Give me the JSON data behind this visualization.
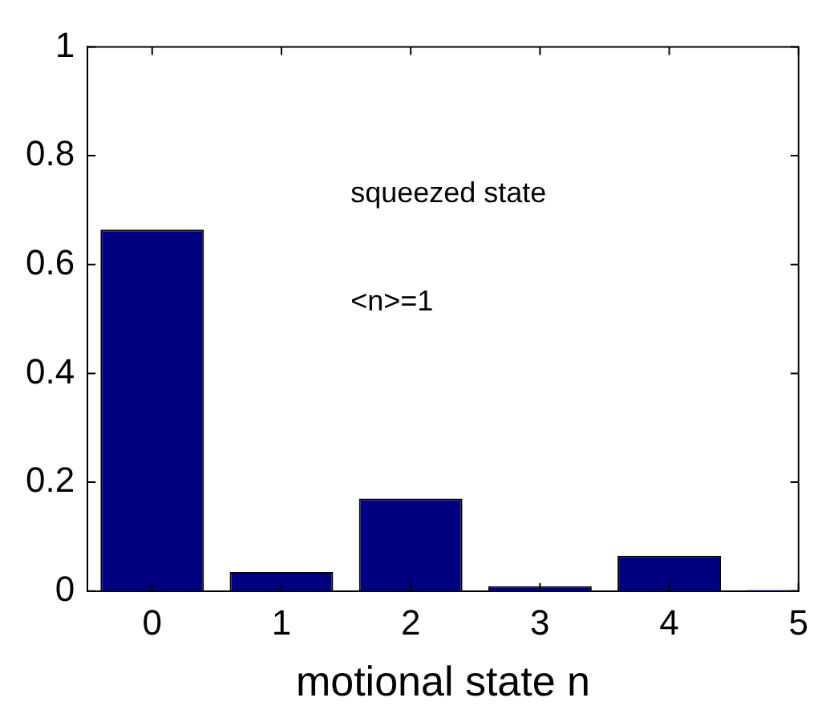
{
  "chart_data": {
    "type": "bar",
    "xlabel": "motional state n",
    "x": [
      0,
      1,
      2,
      3,
      4,
      5
    ],
    "values": [
      0.664,
      0.035,
      0.17,
      0.009,
      0.065,
      0.002
    ],
    "color": "#000080",
    "xlim": [
      -0.5,
      5
    ],
    "xticks": [
      0,
      1,
      2,
      3,
      4,
      5
    ],
    "ylim": [
      0,
      1
    ],
    "yticks": [
      0,
      0.2,
      0.4,
      0.6,
      0.8,
      1
    ],
    "annotations": [
      "squeezed state",
      "<n>=1"
    ],
    "grid": false,
    "legend": false
  }
}
